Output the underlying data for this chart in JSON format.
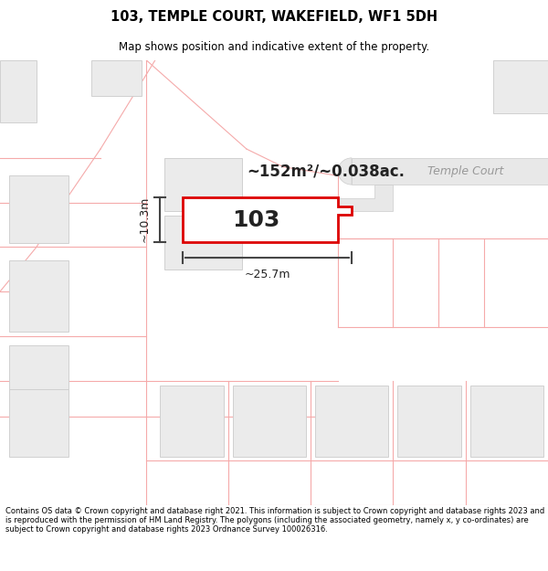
{
  "title": "103, TEMPLE COURT, WAKEFIELD, WF1 5DH",
  "subtitle": "Map shows position and indicative extent of the property.",
  "footer": "Contains OS data © Crown copyright and database right 2021. This information is subject to Crown copyright and database rights 2023 and is reproduced with the permission of HM Land Registry. The polygons (including the associated geometry, namely x, y co-ordinates) are subject to Crown copyright and database rights 2023 Ordnance Survey 100026316.",
  "bg_color": "#ffffff",
  "map_bg": "#ffffff",
  "area_label": "~152m²/~0.038ac.",
  "number_label": "103",
  "street_label": "Temple Court",
  "width_label": "~25.7m",
  "height_label": "~10.3m",
  "main_poly_color": "#dd0000",
  "building_fill": "#ebebeb",
  "pink_line_color": "#f5aaaa",
  "road_fill": "#e8e8e8",
  "road_edge": "#cccccc",
  "meas_color": "#444444",
  "label_color": "#222222",
  "street_color": "#999999"
}
